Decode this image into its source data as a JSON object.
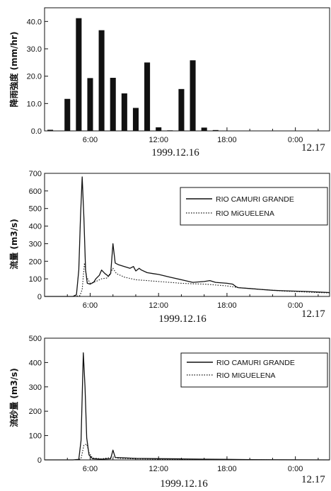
{
  "chart_data": [
    {
      "type": "bar",
      "ylabel": "降雨強度 (mm/hr)",
      "date_label": "1999.12.16",
      "end_label": "12.17",
      "x_tick_labels": [
        "6:00",
        "12:00",
        "18:00",
        "0:00"
      ],
      "x_ticks_hours": [
        6,
        12,
        18,
        24
      ],
      "xlim": [
        2,
        27
      ],
      "ylim": [
        0,
        45
      ],
      "y_ticks": [
        "0.0",
        "10.0",
        "20.0",
        "30.0",
        "40.0"
      ],
      "y_tick_values": [
        0,
        10,
        20,
        30,
        40
      ],
      "bar_width_hours": 0.5,
      "x": [
        2.5,
        4,
        5,
        6,
        7,
        8,
        9,
        10,
        11,
        12,
        13,
        14,
        15,
        16,
        17
      ],
      "values": [
        0.4,
        11.7,
        41.2,
        19.3,
        36.8,
        19.4,
        13.7,
        8.4,
        25.0,
        1.3,
        0.2,
        15.3,
        25.8,
        1.2,
        0.3
      ]
    },
    {
      "type": "line",
      "ylabel": "流量 (m3/s)",
      "date_label": "1999.12.16",
      "end_label": "12.17",
      "x_tick_labels": [
        "6:00",
        "12:00",
        "18:00",
        "0:00"
      ],
      "x_ticks_hours": [
        6,
        12,
        18,
        24
      ],
      "xlim": [
        2,
        27
      ],
      "ylim": [
        0,
        700
      ],
      "y_ticks": [
        "0",
        "100",
        "200",
        "300",
        "400",
        "500",
        "600",
        "700"
      ],
      "y_tick_values": [
        0,
        100,
        200,
        300,
        400,
        500,
        600,
        700
      ],
      "legend": {
        "position": "top-right"
      },
      "series": [
        {
          "name": "RIO CAMURI GRANDE",
          "style": "solid",
          "points": [
            [
              2,
              0
            ],
            [
              3.5,
              0
            ],
            [
              4.5,
              0
            ],
            [
              4.8,
              10
            ],
            [
              5.0,
              150
            ],
            [
              5.15,
              450
            ],
            [
              5.3,
              680
            ],
            [
              5.45,
              450
            ],
            [
              5.6,
              150
            ],
            [
              5.75,
              75
            ],
            [
              6,
              70
            ],
            [
              6.3,
              80
            ],
            [
              6.5,
              100
            ],
            [
              6.8,
              120
            ],
            [
              7,
              150
            ],
            [
              7.3,
              130
            ],
            [
              7.6,
              115
            ],
            [
              7.8,
              130
            ],
            [
              8.0,
              300
            ],
            [
              8.2,
              190
            ],
            [
              8.5,
              180
            ],
            [
              9,
              170
            ],
            [
              9.5,
              160
            ],
            [
              9.8,
              170
            ],
            [
              10,
              145
            ],
            [
              10.3,
              160
            ],
            [
              10.5,
              150
            ],
            [
              11,
              135
            ],
            [
              11.5,
              130
            ],
            [
              12,
              125
            ],
            [
              13,
              110
            ],
            [
              14,
              95
            ],
            [
              15,
              80
            ],
            [
              16,
              85
            ],
            [
              16.5,
              90
            ],
            [
              17,
              80
            ],
            [
              18,
              75
            ],
            [
              18.5,
              70
            ],
            [
              18.8,
              55
            ],
            [
              19,
              50
            ],
            [
              20,
              45
            ],
            [
              21,
              40
            ],
            [
              22,
              35
            ],
            [
              23,
              32
            ],
            [
              24,
              30
            ],
            [
              25,
              28
            ],
            [
              26,
              25
            ],
            [
              27,
              22
            ]
          ]
        },
        {
          "name": "RIO MiGUELENA",
          "style": "dotted",
          "points": [
            [
              2,
              0
            ],
            [
              4.5,
              0
            ],
            [
              5.1,
              5
            ],
            [
              5.3,
              40
            ],
            [
              5.5,
              190
            ],
            [
              5.7,
              110
            ],
            [
              6,
              75
            ],
            [
              6.5,
              85
            ],
            [
              7,
              100
            ],
            [
              7.5,
              105
            ],
            [
              8.0,
              160
            ],
            [
              8.3,
              130
            ],
            [
              9,
              110
            ],
            [
              10,
              95
            ],
            [
              11,
              90
            ],
            [
              12,
              85
            ],
            [
              13,
              80
            ],
            [
              14,
              75
            ],
            [
              15,
              72
            ],
            [
              16,
              70
            ],
            [
              17,
              65
            ],
            [
              18,
              60
            ],
            [
              19,
              50
            ],
            [
              20,
              45
            ],
            [
              21,
              40
            ],
            [
              22,
              35
            ],
            [
              23,
              30
            ],
            [
              24,
              28
            ],
            [
              25,
              25
            ],
            [
              26,
              22
            ],
            [
              27,
              20
            ]
          ]
        }
      ]
    },
    {
      "type": "line",
      "ylabel": "流砂量 (m3/s)",
      "date_label": "1999.12.16",
      "end_label": "12.17",
      "x_tick_labels": [
        "6:00",
        "12:00",
        "18:00",
        "0:00"
      ],
      "x_ticks_hours": [
        6,
        12,
        18,
        24
      ],
      "xlim": [
        2,
        27
      ],
      "ylim": [
        0,
        500
      ],
      "y_ticks": [
        "0",
        "100",
        "200",
        "300",
        "400",
        "500"
      ],
      "y_tick_values": [
        0,
        100,
        200,
        300,
        400,
        500
      ],
      "legend": {
        "position": "top-right"
      },
      "series": [
        {
          "name": "RIO CAMURI GRANDE",
          "style": "solid",
          "points": [
            [
              2,
              0
            ],
            [
              4.5,
              0
            ],
            [
              5.0,
              2
            ],
            [
              5.2,
              80
            ],
            [
              5.4,
              440
            ],
            [
              5.55,
              300
            ],
            [
              5.7,
              90
            ],
            [
              5.9,
              20
            ],
            [
              6.2,
              5
            ],
            [
              7,
              3
            ],
            [
              7.8,
              5
            ],
            [
              8.0,
              40
            ],
            [
              8.2,
              10
            ],
            [
              9,
              8
            ],
            [
              10,
              6
            ],
            [
              12,
              5
            ],
            [
              14,
              4
            ],
            [
              16,
              3
            ],
            [
              18,
              2
            ],
            [
              20,
              1
            ],
            [
              22,
              0.5
            ],
            [
              27,
              0
            ]
          ]
        },
        {
          "name": "RIO MIGUELENA",
          "style": "dotted",
          "points": [
            [
              2,
              0
            ],
            [
              4.9,
              0
            ],
            [
              5.2,
              5
            ],
            [
              5.45,
              60
            ],
            [
              5.7,
              65
            ],
            [
              5.9,
              30
            ],
            [
              6.2,
              8
            ],
            [
              7,
              4
            ],
            [
              8,
              12
            ],
            [
              8.5,
              6
            ],
            [
              10,
              4
            ],
            [
              12,
              3
            ],
            [
              15,
              2
            ],
            [
              18,
              1
            ],
            [
              22,
              0
            ],
            [
              27,
              0
            ]
          ]
        }
      ]
    }
  ]
}
